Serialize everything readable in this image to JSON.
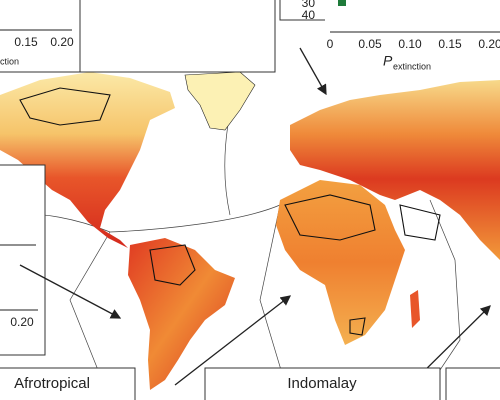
{
  "panels": {
    "top_left": {
      "x_ticks": [
        "0.15",
        "0.20"
      ],
      "x_label": "ction"
    },
    "top_right": {
      "y_ticks": [
        "30",
        "40"
      ],
      "x_ticks": [
        "0",
        "0.05",
        "0.10",
        "0.15",
        "0.20"
      ],
      "x_label": "P",
      "x_label_sub": "extinction"
    },
    "mid_left": {
      "x_ticks": [
        "0.20"
      ]
    }
  },
  "labels": [
    "Afrotropical",
    "Indomalay"
  ]
}
